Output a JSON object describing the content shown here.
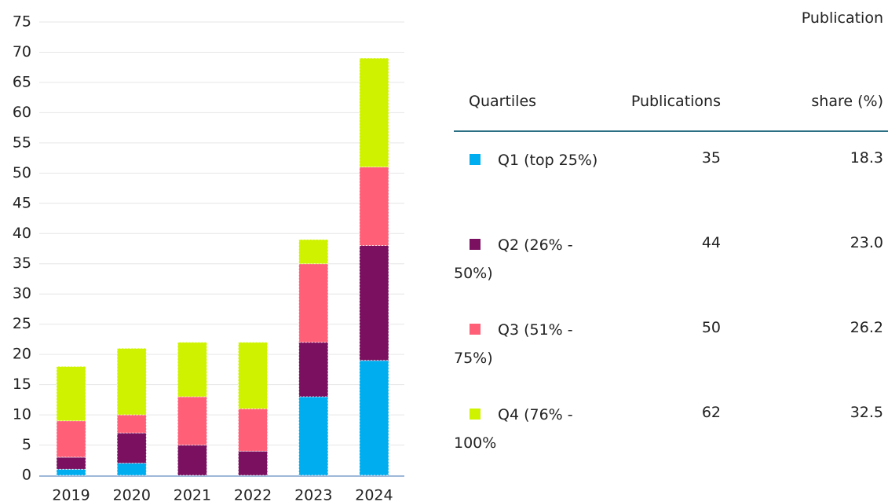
{
  "chart_data": {
    "type": "stacked_bar",
    "categories": [
      "2019",
      "2020",
      "2021",
      "2022",
      "2023",
      "2024"
    ],
    "series": [
      {
        "name": "Q1 (top 25%)",
        "color": "#00aeef",
        "values": [
          1,
          2,
          0,
          0,
          13,
          19
        ]
      },
      {
        "name": "Q2 (26% - 50%)",
        "color": "#7b1060",
        "values": [
          2,
          5,
          5,
          4,
          9,
          19
        ]
      },
      {
        "name": "Q3 (51% - 75%)",
        "color": "#ff6078",
        "values": [
          6,
          3,
          8,
          7,
          13,
          13
        ]
      },
      {
        "name": "Q4 (76% - 100%",
        "color": "#cff200",
        "values": [
          9,
          11,
          9,
          11,
          4,
          18
        ]
      }
    ],
    "ylim": [
      0,
      75
    ],
    "yticks": [
      0,
      5,
      10,
      15,
      20,
      25,
      30,
      35,
      40,
      45,
      50,
      55,
      60,
      65,
      70,
      75
    ],
    "grid": true
  },
  "table": {
    "header": [
      "Quartiles",
      "Publications",
      [
        "Publication",
        "share (%)"
      ]
    ],
    "rows": [
      [
        "Q1 (top 25%)",
        "35",
        "18.3"
      ],
      [
        "Q2 (26% - 50%)",
        "44",
        "23.0"
      ],
      [
        "Q3 (51% - 75%)",
        "50",
        "26.2"
      ],
      [
        "Q4 (76% - 100%",
        "62",
        "32.5"
      ]
    ]
  }
}
